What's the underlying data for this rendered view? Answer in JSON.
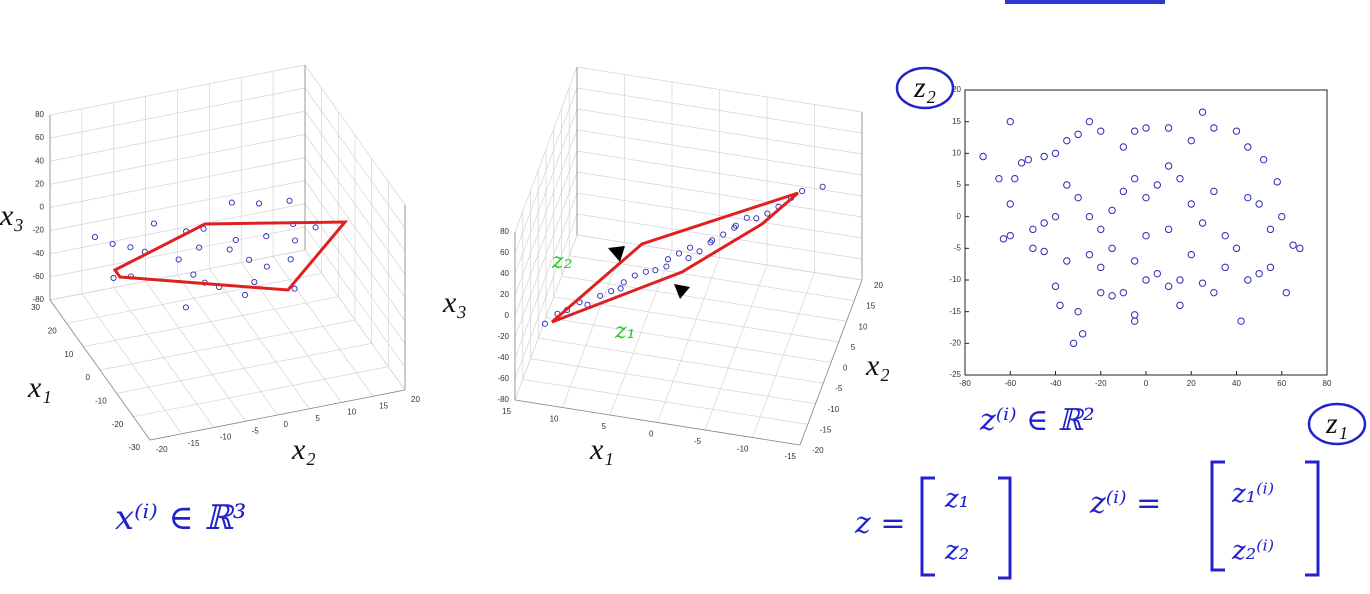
{
  "chart_data": [
    {
      "type": "scatter3d",
      "xlabel": "x₁",
      "ylabel": "x₂",
      "zlabel": "x₃",
      "color": "#2b2bb8",
      "xlim": [
        -30,
        30
      ],
      "ylim": [
        -20,
        20
      ],
      "zlim": [
        -80,
        80
      ],
      "xticks": [
        -30,
        -20,
        -10,
        0,
        10,
        20,
        30
      ],
      "yticks": [
        -20,
        -15,
        -10,
        -5,
        0,
        5,
        10,
        15,
        20
      ],
      "zticks": [
        -80,
        -60,
        -40,
        -20,
        0,
        20,
        40,
        60,
        80
      ],
      "x": [
        14,
        20,
        8,
        25,
        5,
        18,
        12,
        28,
        2,
        22,
        16,
        10,
        -2,
        26,
        6,
        19,
        13,
        24,
        9,
        15,
        3,
        21,
        17,
        11,
        27,
        7,
        23,
        1,
        14,
        18
      ],
      "y": [
        4,
        -10,
        12,
        -5,
        0,
        15,
        -12,
        8,
        -6,
        2,
        18,
        6,
        10,
        -14,
        -2,
        -8,
        14,
        16,
        -3,
        10,
        5,
        -1,
        0,
        -15,
        12,
        8,
        -12,
        3,
        -4,
        6
      ],
      "z": [
        -30,
        -25,
        -35,
        -20,
        -40,
        -28,
        -32,
        -22,
        -45,
        -26,
        -30,
        -33,
        -38,
        -24,
        -36,
        -29,
        -31,
        -21,
        -34,
        -27,
        -37,
        -23,
        -30,
        -28,
        -25,
        -35,
        -26,
        -42,
        -30,
        -32
      ]
    },
    {
      "type": "scatter3d",
      "xlabel": "x₁",
      "ylabel": "x₂",
      "zlabel": "x₃",
      "color": "#2b2bb8",
      "xlim": [
        -15,
        15
      ],
      "ylim": [
        -20,
        20
      ],
      "zlim": [
        -80,
        80
      ],
      "xticks": [
        -15,
        -10,
        -5,
        0,
        5,
        10,
        15
      ],
      "yticks": [
        -20,
        -15,
        -10,
        -5,
        0,
        5,
        10,
        15,
        20
      ],
      "zticks": [
        -80,
        -60,
        -40,
        -20,
        0,
        20,
        40,
        60,
        80
      ],
      "x": [
        13,
        12,
        11,
        10,
        8,
        7,
        6,
        5,
        3,
        2,
        1,
        0,
        -2,
        -3,
        -4,
        -5,
        -7,
        -8,
        -9,
        -10,
        -12,
        6,
        2,
        -1,
        -4,
        4,
        9,
        -6,
        0,
        -2
      ],
      "y": [
        -13,
        -11,
        -11,
        -9,
        -8,
        -7,
        -5,
        -4,
        -3,
        -1,
        0,
        1,
        3,
        4,
        5,
        7,
        8,
        9,
        11,
        12,
        13,
        -7,
        -2,
        1,
        6,
        -3,
        -10,
        7,
        0,
        2
      ],
      "z": [
        -32,
        -29,
        -24,
        -23,
        -18,
        -16,
        -14,
        -10,
        -6,
        -2,
        1,
        4,
        6,
        9,
        13,
        16,
        19,
        23,
        25,
        29,
        32,
        -12,
        -5,
        2,
        11,
        -9,
        -20,
        17,
        -2,
        8
      ]
    },
    {
      "type": "scatter",
      "color": "#2b2bb8",
      "xlim": [
        -80,
        80
      ],
      "ylim": [
        -25,
        20
      ],
      "xticks": [
        -80,
        -60,
        -40,
        -20,
        0,
        20,
        40,
        60,
        80
      ],
      "yticks": [
        -25,
        -20,
        -15,
        -10,
        -5,
        0,
        5,
        10,
        15,
        20
      ],
      "x": [
        -72,
        -60,
        -58,
        -65,
        -55,
        -60,
        -52,
        -50,
        -45,
        -40,
        -38,
        -30,
        -32,
        -28,
        -20,
        -15,
        -10,
        -5,
        -5,
        0,
        5,
        10,
        15,
        25,
        30,
        42,
        45,
        55,
        62,
        65,
        68,
        55,
        60,
        50,
        58,
        52,
        45,
        40,
        30,
        25,
        20,
        10,
        0,
        -5,
        -10,
        -20,
        -25,
        -30,
        -35,
        -40,
        -45,
        -35,
        -30,
        -25,
        -20,
        -15,
        -10,
        -5,
        0,
        5,
        10,
        15,
        20,
        25,
        30,
        35,
        40,
        45,
        -40,
        -45,
        -50,
        -60,
        -63,
        -35,
        -25,
        -15,
        -5,
        0,
        10,
        20,
        15,
        -20,
        35,
        50
      ],
      "y": [
        9.5,
        15,
        6,
        6,
        8.5,
        2,
        9,
        -5,
        -5.5,
        -11,
        -14,
        -15,
        -20,
        -18.5,
        -12,
        -12.5,
        -12,
        -15.5,
        -16.5,
        -10,
        -9,
        -11,
        -10,
        -10.5,
        -12,
        -16.5,
        -10,
        -8,
        -12,
        -4.5,
        -5,
        -2,
        0,
        2,
        5.5,
        9,
        11,
        13.5,
        14,
        16.5,
        12,
        14,
        14,
        13.5,
        11,
        13.5,
        15,
        13,
        12,
        10,
        9.5,
        5,
        3,
        0,
        -2,
        1,
        4,
        6,
        3,
        5,
        8,
        6,
        2,
        -1,
        4,
        -3,
        -5,
        3,
        0,
        -1,
        -2,
        -3,
        -3.5,
        -7,
        -6,
        -5,
        -7,
        -3,
        -2,
        -6,
        -14,
        -8,
        -8,
        -9
      ]
    }
  ],
  "annotations": {
    "x_space": "x⁽ⁱ⁾ ∈ ℝ³",
    "z_space": "z⁽ⁱ⁾ ∈ ℝ²",
    "z2_arrow": "z₂",
    "z1_arrow": "z₁",
    "z2_axis": "z₂",
    "z1_axis": "z₁",
    "z_eq": "z =",
    "z_1": "z₁",
    "z_2": "z₂",
    "zi_eq": "z⁽ⁱ⁾ =",
    "zi_1": "z₁⁽ⁱ⁾",
    "zi_2": "z₂⁽ⁱ⁾"
  }
}
